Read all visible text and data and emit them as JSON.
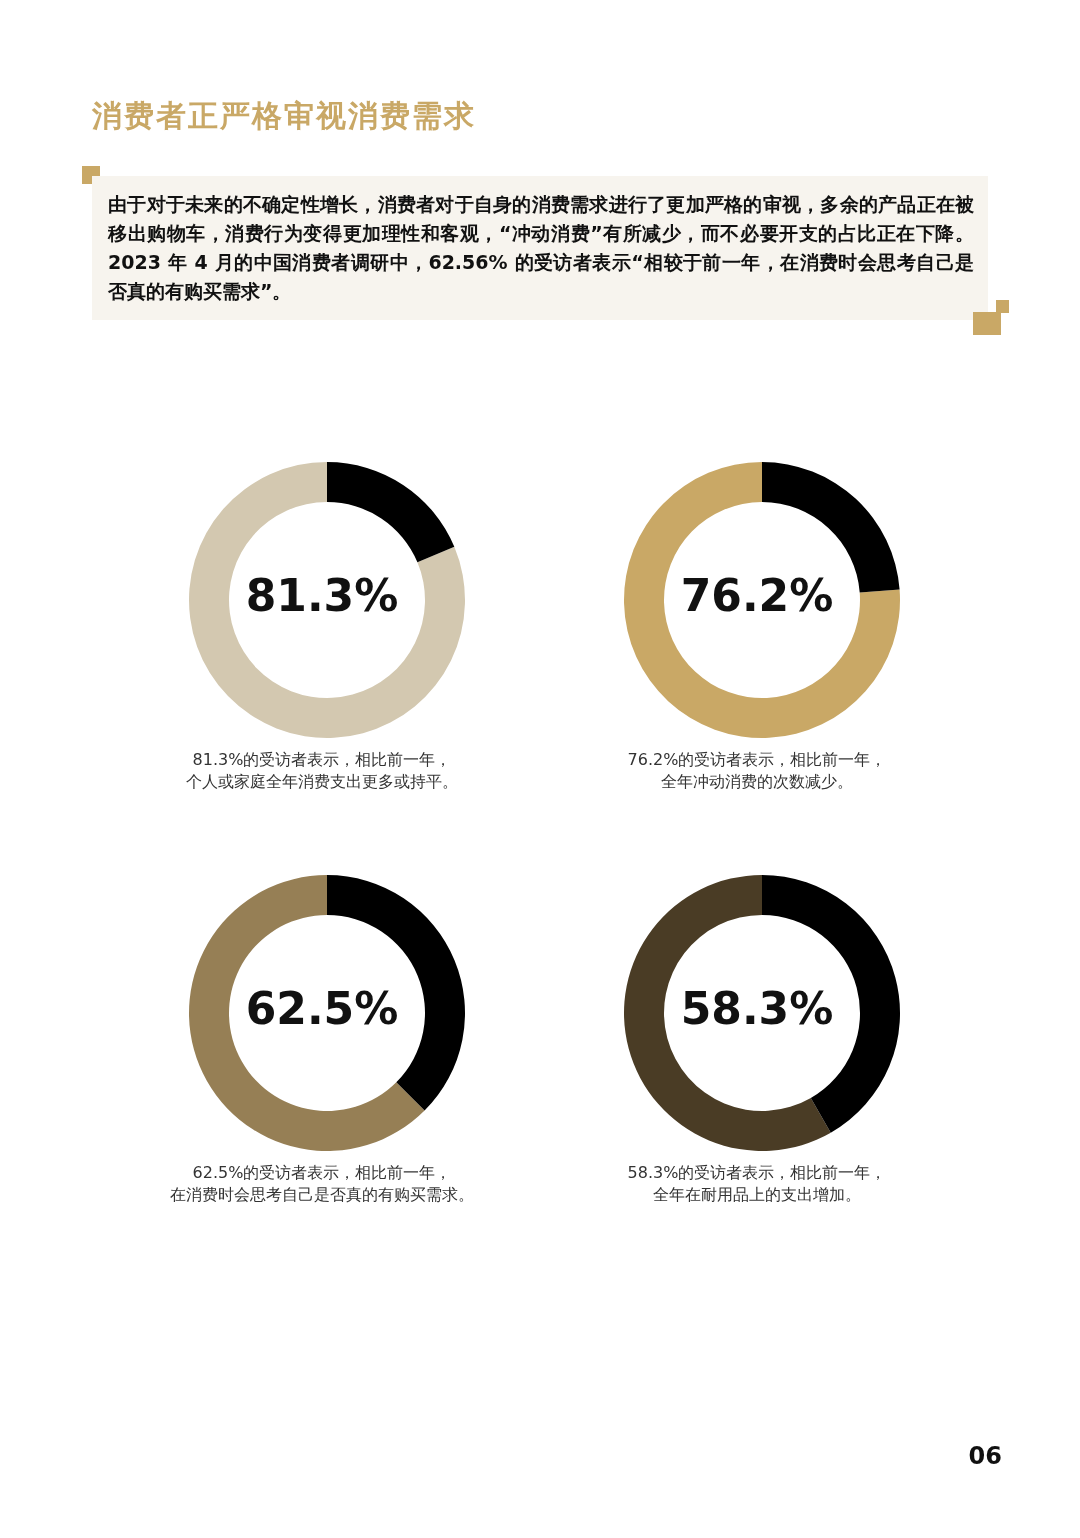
{
  "chart_data": [
    {
      "type": "other",
      "title": "消费者正严格审视消费需求",
      "subtitle": "由于对于未来的不确定性增长，消费者对于自身的消费需求进行了更加严格的审视，多余的产品正在被移出购物车，消费行为变得更加理性和客观，“冲动消费”有所减少，而不必要开支的占比正在下降。2023 年 4 月的中国消费者调研中，62.56% 的受访者表示“相较于前一年，在消费时会思考自己是否真的有购买需求”。",
      "annotations": [
        "06"
      ]
    },
    {
      "type": "donut",
      "categories": [
        null,
        null
      ],
      "values": [
        81.3,
        18.7
      ],
      "colors": [
        "#d3c8b0",
        "#000000"
      ],
      "value_labels": [
        "81.3%",
        null
      ],
      "legend": false,
      "annotations": [
        "81.3%的受访者表示，相比前一年，个人或家庭全年消费支出更多或持平。"
      ]
    },
    {
      "type": "donut",
      "categories": [
        null,
        null
      ],
      "values": [
        76.2,
        23.8
      ],
      "colors": [
        "#c9a866",
        "#000000"
      ],
      "value_labels": [
        "76.2%",
        null
      ],
      "legend": false,
      "annotations": [
        "76.2%的受访者表示，相比前一年，全年冲动消费的次数减少。"
      ]
    },
    {
      "type": "donut",
      "categories": [
        null,
        null
      ],
      "values": [
        62.5,
        37.5
      ],
      "colors": [
        "#967f55",
        "#000000"
      ],
      "value_labels": [
        "62.5%",
        null
      ],
      "legend": false,
      "annotations": [
        "62.5%的受访者表示，相比前一年，在消费时会思考自己是否真的有购买需求。"
      ]
    },
    {
      "type": "donut",
      "categories": [
        null,
        null
      ],
      "values": [
        58.3,
        41.7
      ],
      "colors": [
        "#4a3c25",
        "#000000"
      ],
      "value_labels": [
        "58.3%",
        null
      ],
      "legend": false,
      "annotations": [
        "58.3%的受访者表示，相比前一年，全年在耐用品上的支出增加。"
      ]
    }
  ]
}
